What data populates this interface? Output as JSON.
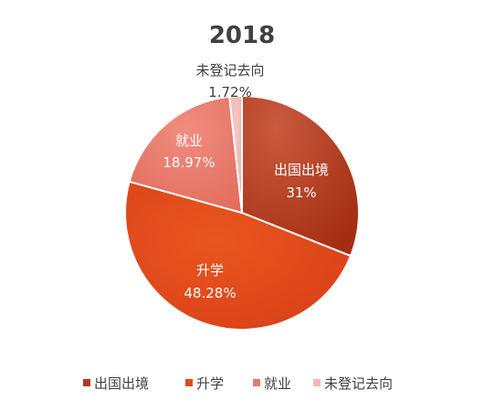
{
  "chart_data": {
    "type": "pie",
    "title": "2018",
    "categories": [
      "出国出境",
      "升学",
      "就业",
      "未登记去向"
    ],
    "values": [
      31,
      48.28,
      18.97,
      1.72
    ],
    "value_labels": [
      "31%",
      "48.28%",
      "18.97%",
      "1.72%"
    ],
    "colors": [
      "#b5371a",
      "#e04a1b",
      "#e97a6a",
      "#f2b6b3"
    ],
    "label_colors": [
      "#ffffff",
      "#ffffff",
      "#ffffff",
      "#404040"
    ],
    "legend": {
      "position": "bottom",
      "entries": [
        "出国出境",
        "升学",
        "就业",
        "未登记去向"
      ]
    },
    "start_angle": "12 o'clock",
    "direction": "clockwise"
  }
}
